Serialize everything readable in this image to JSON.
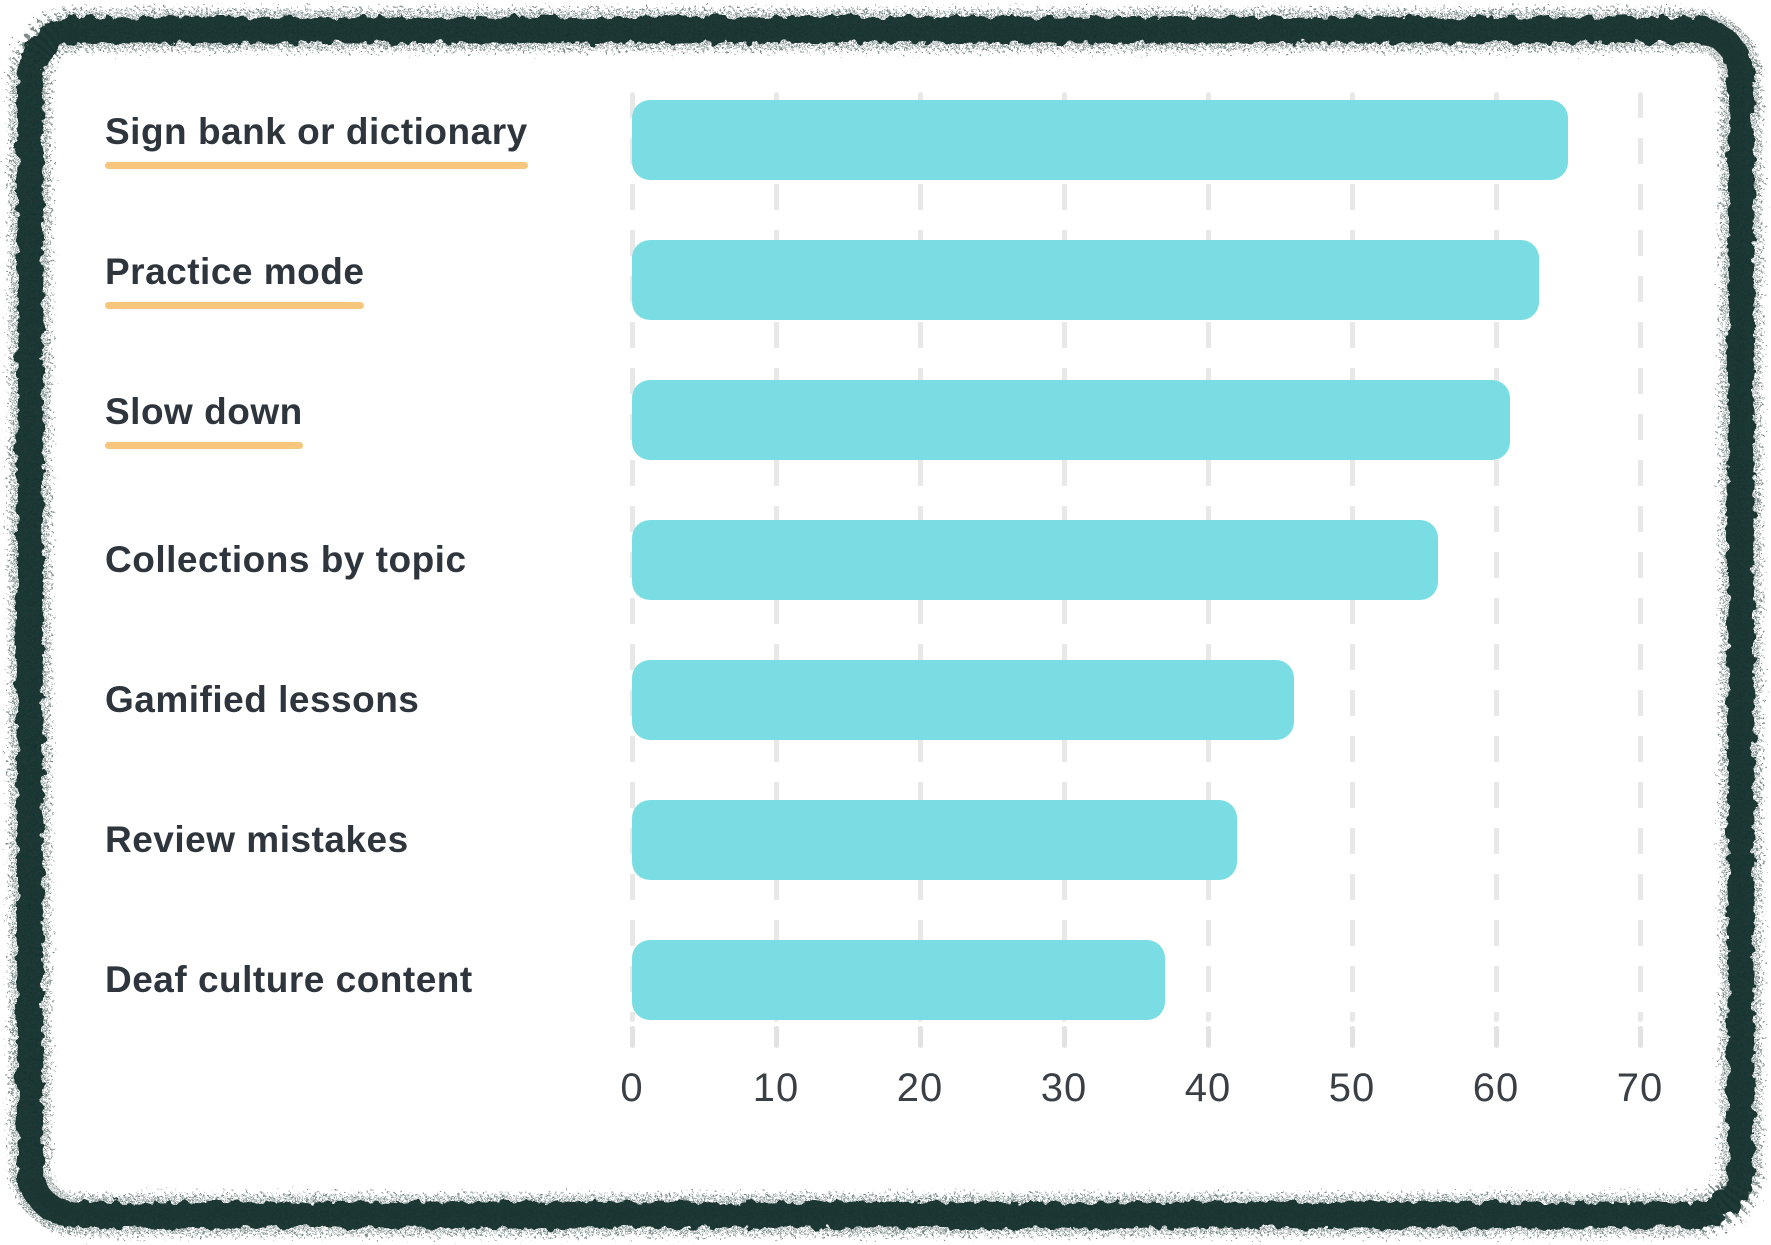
{
  "chart_data": {
    "type": "bar",
    "orientation": "horizontal",
    "title": "",
    "xlabel": "",
    "ylabel": "",
    "categories": [
      "Sign bank or dictionary",
      "Practice mode",
      "Slow down",
      "Collections by topic",
      "Gamified lessons",
      "Review mistakes",
      "Deaf culture content"
    ],
    "values": [
      65,
      63,
      61,
      56,
      46,
      42,
      37
    ],
    "underlined": [
      true,
      true,
      true,
      false,
      false,
      false,
      false
    ],
    "x_ticks": [
      0,
      10,
      20,
      30,
      40,
      50,
      60,
      70
    ],
    "xlim": [
      0,
      70
    ],
    "grid": "dashed-vertical",
    "legend": "none",
    "colors": {
      "bar": "#79DDE3",
      "label_text": "#2E353C",
      "underline": "#F7C67D",
      "tick_text": "#3A4045",
      "gridline": "#E8E8E8",
      "tick_mark": "#E2E2E2",
      "frame": "#16332D",
      "card_background": "#FFFFFF"
    }
  }
}
